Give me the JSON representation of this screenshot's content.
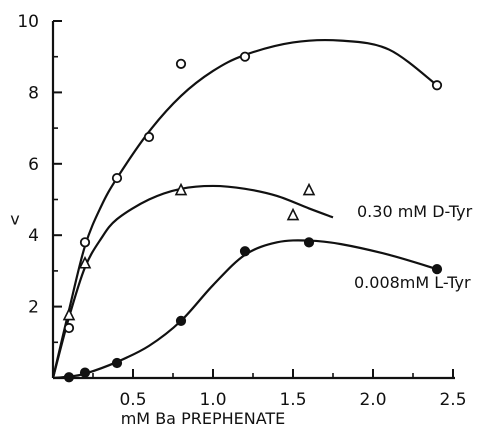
{
  "chart_data": {
    "type": "scatter",
    "xlabel": "mM Ba PREPHENATE",
    "ylabel": "v",
    "xlim": [
      0,
      2.5
    ],
    "ylim": [
      0,
      10
    ],
    "x_ticks": [
      "0.5",
      "1.0",
      "1.5",
      "2.0",
      "2.5"
    ],
    "y_ticks": [
      "2",
      "4",
      "6",
      "8",
      "10"
    ],
    "grid": false,
    "series": [
      {
        "name": "",
        "marker": "open-circle",
        "points": [
          [
            0.1,
            1.4
          ],
          [
            0.2,
            3.8
          ],
          [
            0.4,
            5.6
          ],
          [
            0.6,
            6.75
          ],
          [
            0.8,
            8.8
          ],
          [
            1.2,
            9.0
          ],
          [
            2.4,
            8.2
          ]
        ],
        "curve": [
          [
            0,
            0
          ],
          [
            0.1,
            1.9
          ],
          [
            0.2,
            3.7
          ],
          [
            0.3,
            4.8
          ],
          [
            0.4,
            5.6
          ],
          [
            0.6,
            6.9
          ],
          [
            0.8,
            7.9
          ],
          [
            1.0,
            8.6
          ],
          [
            1.2,
            9.05
          ],
          [
            1.5,
            9.4
          ],
          [
            1.8,
            9.45
          ],
          [
            2.1,
            9.2
          ],
          [
            2.4,
            8.2
          ]
        ]
      },
      {
        "name": "0.30 mM D-Tyr",
        "marker": "open-triangle",
        "points": [
          [
            0.1,
            1.75
          ],
          [
            0.2,
            3.2
          ],
          [
            0.8,
            5.25
          ],
          [
            1.5,
            4.55
          ],
          [
            1.6,
            5.25
          ]
        ],
        "curve": [
          [
            0,
            0
          ],
          [
            0.1,
            1.7
          ],
          [
            0.2,
            3.1
          ],
          [
            0.3,
            3.9
          ],
          [
            0.4,
            4.45
          ],
          [
            0.6,
            5.0
          ],
          [
            0.8,
            5.3
          ],
          [
            1.0,
            5.38
          ],
          [
            1.2,
            5.3
          ],
          [
            1.4,
            5.1
          ],
          [
            1.6,
            4.75
          ],
          [
            1.75,
            4.5
          ]
        ]
      },
      {
        "name": "0.008mM L-Tyr",
        "marker": "filled-circle",
        "points": [
          [
            0.1,
            0.02
          ],
          [
            0.2,
            0.15
          ],
          [
            0.4,
            0.42
          ],
          [
            0.8,
            1.6
          ],
          [
            1.2,
            3.55
          ],
          [
            1.6,
            3.8
          ],
          [
            2.4,
            3.05
          ]
        ],
        "curve": [
          [
            0,
            0
          ],
          [
            0.1,
            0.04
          ],
          [
            0.2,
            0.12
          ],
          [
            0.4,
            0.45
          ],
          [
            0.6,
            0.9
          ],
          [
            0.8,
            1.6
          ],
          [
            1.0,
            2.6
          ],
          [
            1.2,
            3.45
          ],
          [
            1.4,
            3.8
          ],
          [
            1.6,
            3.85
          ],
          [
            1.8,
            3.75
          ],
          [
            2.1,
            3.45
          ],
          [
            2.4,
            3.05
          ]
        ]
      }
    ]
  }
}
